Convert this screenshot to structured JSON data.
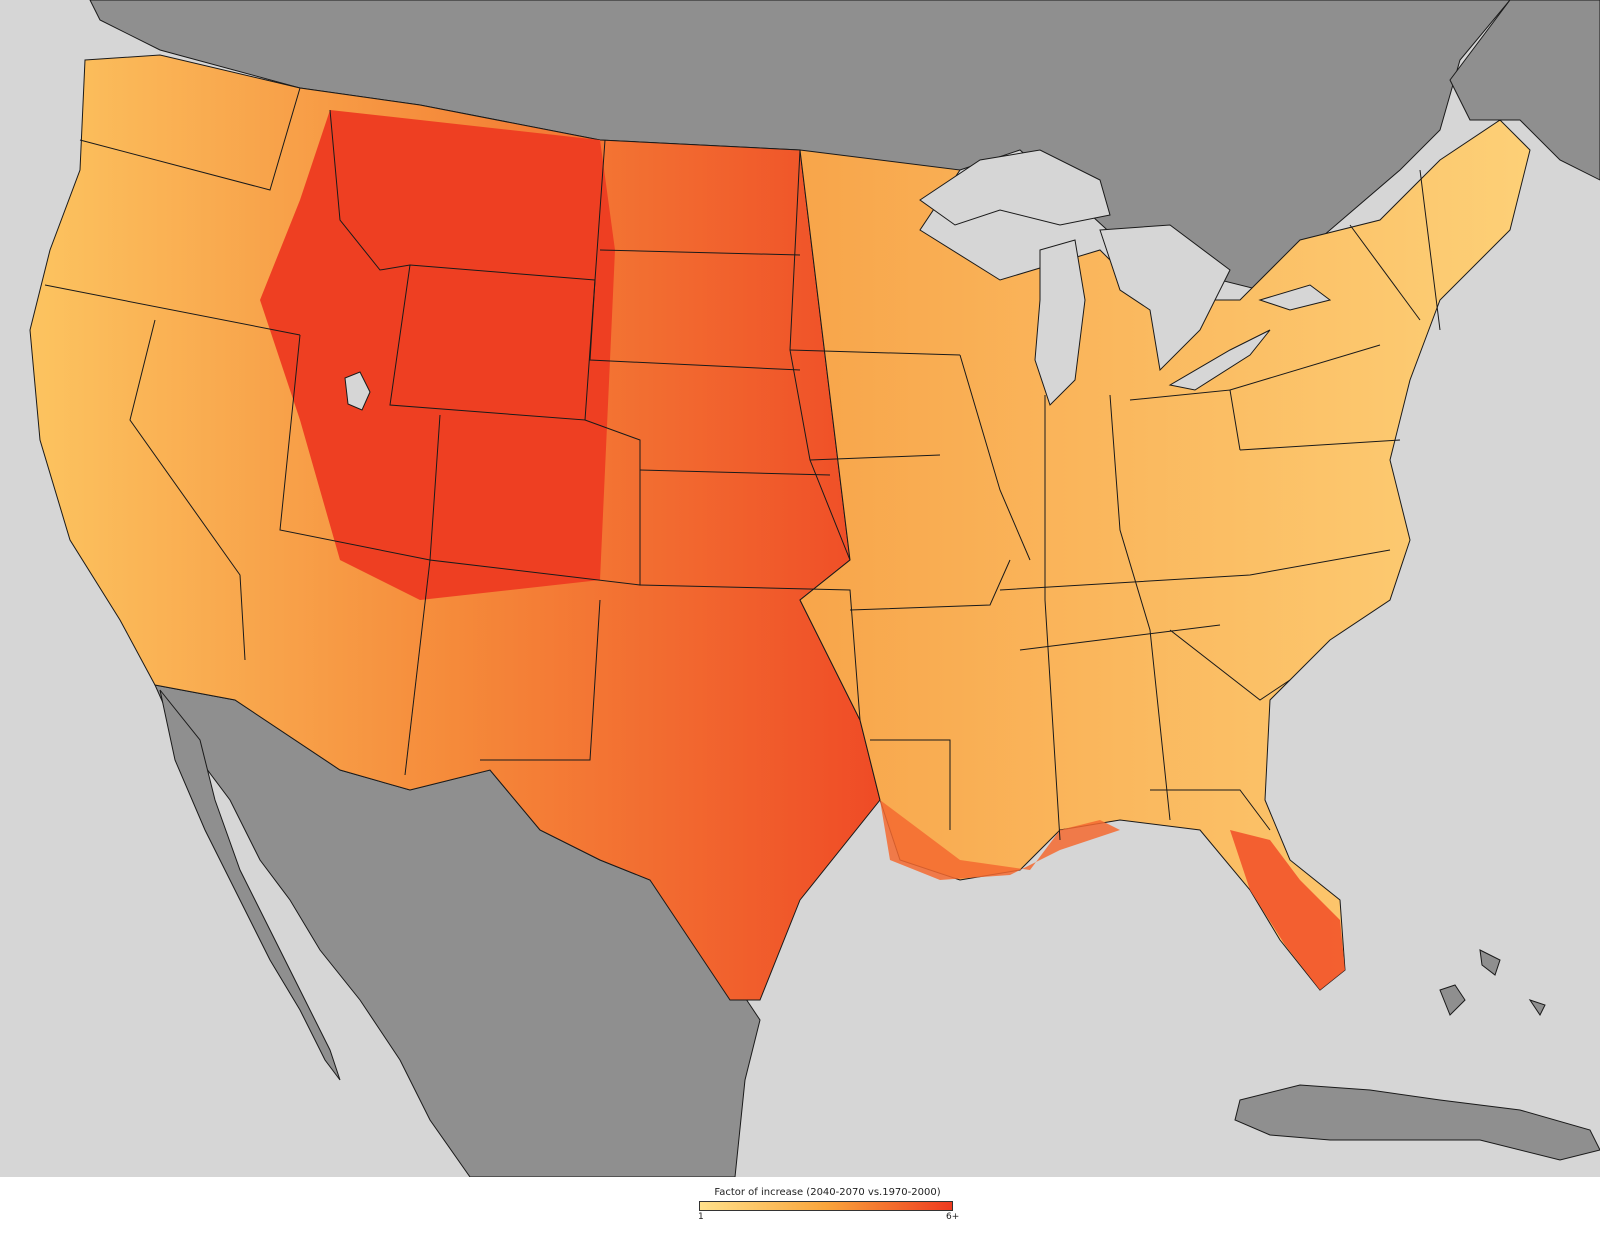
{
  "colors": {
    "ocean": "#d6d6d6",
    "land_outside": "#8f8f8f",
    "lakes": "#d6d6d6",
    "borders": "#1a1a1a",
    "scale_low": "#ffe08a",
    "scale_mid": "#f9a53c",
    "scale_high": "#ee3a1f"
  },
  "legend": {
    "title": "Factor of increase (2040-2070 vs.1970-2000)",
    "min_label": "1",
    "max_label": "6+"
  },
  "map_data": {
    "type": "choropleth",
    "region": "Contiguous United States",
    "scale_min": 1,
    "scale_max": 6,
    "regional_intensity": [
      {
        "region": "Wyoming / Colorado / New Mexico / Utah",
        "level": "6+"
      },
      {
        "region": "Montana / Idaho / Arizona",
        "level": "high"
      },
      {
        "region": "Nevada / Oregon / Dakotas / Texas",
        "level": "moderate-high"
      },
      {
        "region": "Great Plains / Midwest",
        "level": "moderate"
      },
      {
        "region": "Southeast / Great Lakes / Northeast",
        "level": "low"
      },
      {
        "region": "Florida / Gulf Coast / Carolina coast",
        "level": "high"
      }
    ]
  }
}
